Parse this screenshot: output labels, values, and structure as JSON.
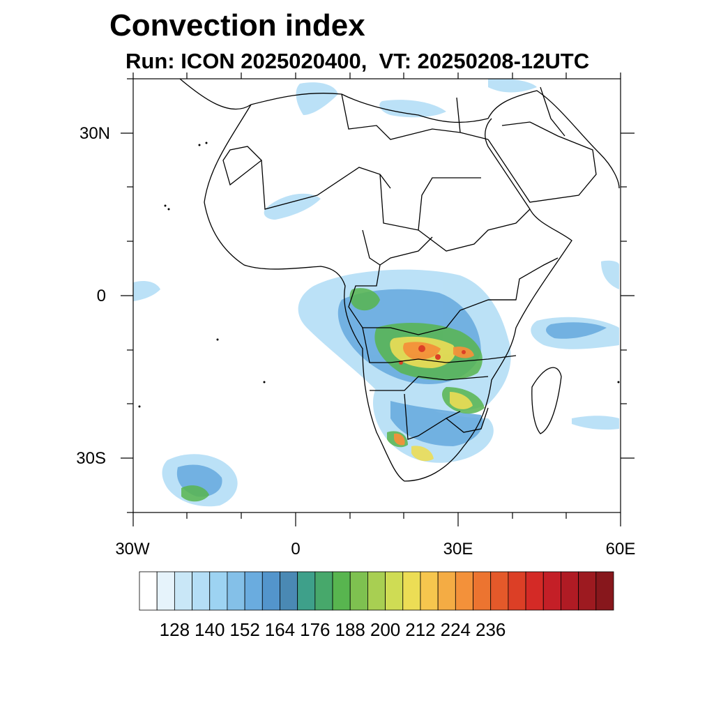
{
  "title": "Convection index",
  "subtitle": "Run: ICON 2025020400,  VT: 20250208-12UTC",
  "map": {
    "projection": "cylindrical equidistant",
    "lon_range_deg": [
      -30,
      60
    ],
    "lat_range_deg": [
      -40,
      40
    ],
    "lat_ticks": [
      "30N",
      "0",
      "30S"
    ],
    "lon_ticks": [
      "30W",
      "0",
      "30E",
      "60E"
    ]
  },
  "colorbar": {
    "tick_labels": [
      "128",
      "140",
      "152",
      "164",
      "176",
      "188",
      "200",
      "212",
      "224",
      "236"
    ],
    "colors": [
      "#ffffff",
      "#e6f3fb",
      "#c9e7f7",
      "#b4def6",
      "#9dd3f2",
      "#84c0e8",
      "#6aacdf",
      "#5395cc",
      "#4a89b4",
      "#3ea08a",
      "#47a86b",
      "#58b54f",
      "#7ec150",
      "#a8cf52",
      "#cfdc54",
      "#ecdd55",
      "#f6c64e",
      "#f4ac44",
      "#f3913a",
      "#ec7430",
      "#e4592a",
      "#dc3f26",
      "#d42a26",
      "#c41f27",
      "#b01b24",
      "#9d1a20",
      "#87171c"
    ]
  }
}
